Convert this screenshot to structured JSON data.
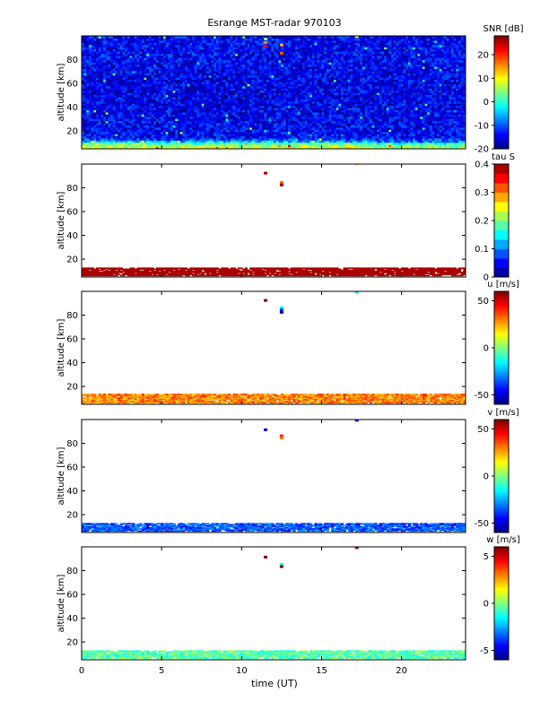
{
  "title": "Esrange MST-radar 970103",
  "xlabel": "time (UT)",
  "chart_data": [
    {
      "type": "heatmap",
      "quantity": "SNR",
      "colorbar_label": "SNR [dB]",
      "ylabel": "altitude [km]",
      "xlim": [
        0,
        24
      ],
      "ylim": [
        5,
        100
      ],
      "yticks": [
        20,
        40,
        60,
        80
      ],
      "clim": [
        -20,
        28
      ],
      "cticks": [
        -20,
        -10,
        0,
        10,
        20
      ],
      "pattern": "noise field -15 dB at all altitudes; 2 to 10 dB near-ground band below 12 km; isolated echoes near 11.5 h and 12.5 h at 80-97 km",
      "profile_snr_by_altitude": [
        {
          "alt": 6,
          "snr": 8
        },
        {
          "alt": 8,
          "snr": 6
        },
        {
          "alt": 10,
          "snr": 2
        },
        {
          "alt": 12,
          "snr": -8
        },
        {
          "alt": 15,
          "snr": -14
        },
        {
          "alt": 50,
          "snr": -15
        },
        {
          "alt": 99,
          "snr": -14
        }
      ],
      "point_echoes": [
        {
          "time": 11.5,
          "alt": 97,
          "value": 5
        },
        {
          "time": 11.5,
          "alt": 94,
          "value": 16
        },
        {
          "time": 11.5,
          "alt": 91,
          "value": 22
        },
        {
          "time": 12.5,
          "alt": 92,
          "value": 14
        },
        {
          "time": 12.5,
          "alt": 85,
          "value": 18
        },
        {
          "time": 17.2,
          "alt": 99,
          "value": 10
        }
      ]
    },
    {
      "type": "heatmap",
      "quantity": "tau S",
      "colorbar_label": "tau S",
      "ylabel": "altitude [km]",
      "xlim": [
        0,
        24
      ],
      "ylim": [
        5,
        100
      ],
      "yticks": [
        20,
        40,
        60,
        80
      ],
      "clim": [
        0,
        0.4
      ],
      "cticks": [
        0,
        0.1,
        0.2,
        0.3,
        0.4
      ],
      "cbar_levels": 12,
      "layer_km": [
        6,
        13
      ],
      "layer_value": 0.4,
      "point_echoes": [
        {
          "time": 11.5,
          "alt": 92,
          "value": 0.4
        },
        {
          "time": 12.5,
          "alt": 84,
          "value": 0.33
        },
        {
          "time": 12.5,
          "alt": 82,
          "value": 0.4
        },
        {
          "time": 17.2,
          "alt": 100,
          "value": 0.3
        }
      ]
    },
    {
      "type": "heatmap",
      "quantity": "u",
      "colorbar_label": "u [m/s]",
      "ylabel": "altitude [km]",
      "xlim": [
        0,
        24
      ],
      "ylim": [
        5,
        100
      ],
      "yticks": [
        20,
        40,
        60,
        80
      ],
      "clim": [
        -60,
        60
      ],
      "cticks": [
        -50,
        0,
        50
      ],
      "layer_km": [
        6,
        14
      ],
      "layer_value": 30,
      "point_echoes": [
        {
          "time": 11.5,
          "alt": 92,
          "value": 60
        },
        {
          "time": 12.5,
          "alt": 86,
          "value": -15
        },
        {
          "time": 12.5,
          "alt": 84,
          "value": -40
        },
        {
          "time": 12.5,
          "alt": 82,
          "value": -58
        },
        {
          "time": 17.2,
          "alt": 99,
          "value": -20
        }
      ]
    },
    {
      "type": "heatmap",
      "quantity": "v",
      "colorbar_label": "v [m/s]",
      "ylabel": "altitude [km]",
      "xlim": [
        0,
        24
      ],
      "ylim": [
        5,
        100
      ],
      "yticks": [
        20,
        40,
        60,
        80
      ],
      "clim": [
        -60,
        60
      ],
      "cticks": [
        -50,
        0,
        50
      ],
      "layer_km": [
        6,
        13
      ],
      "layer_value": -35,
      "point_echoes": [
        {
          "time": 11.5,
          "alt": 91,
          "value": -50
        },
        {
          "time": 12.5,
          "alt": 86,
          "value": 40
        },
        {
          "time": 12.5,
          "alt": 84,
          "value": 30
        },
        {
          "time": 17.2,
          "alt": 99,
          "value": -45
        }
      ]
    },
    {
      "type": "heatmap",
      "quantity": "w",
      "colorbar_label": "w [m/s]",
      "ylabel": "altitude [km]",
      "xlim": [
        0,
        24
      ],
      "ylim": [
        5,
        100
      ],
      "yticks": [
        20,
        40,
        60,
        80
      ],
      "clim": [
        -6,
        6
      ],
      "cticks": [
        -5,
        0,
        5
      ],
      "layer_km": [
        6,
        13
      ],
      "layer_value": -0.5,
      "point_echoes": [
        {
          "time": 11.5,
          "alt": 91,
          "value": 6
        },
        {
          "time": 12.5,
          "alt": 85,
          "value": -1
        },
        {
          "time": 12.5,
          "alt": 83,
          "value": 6
        },
        {
          "time": 17.2,
          "alt": 99,
          "value": 6
        }
      ]
    }
  ],
  "xticks": [
    0,
    5,
    10,
    15,
    20
  ]
}
